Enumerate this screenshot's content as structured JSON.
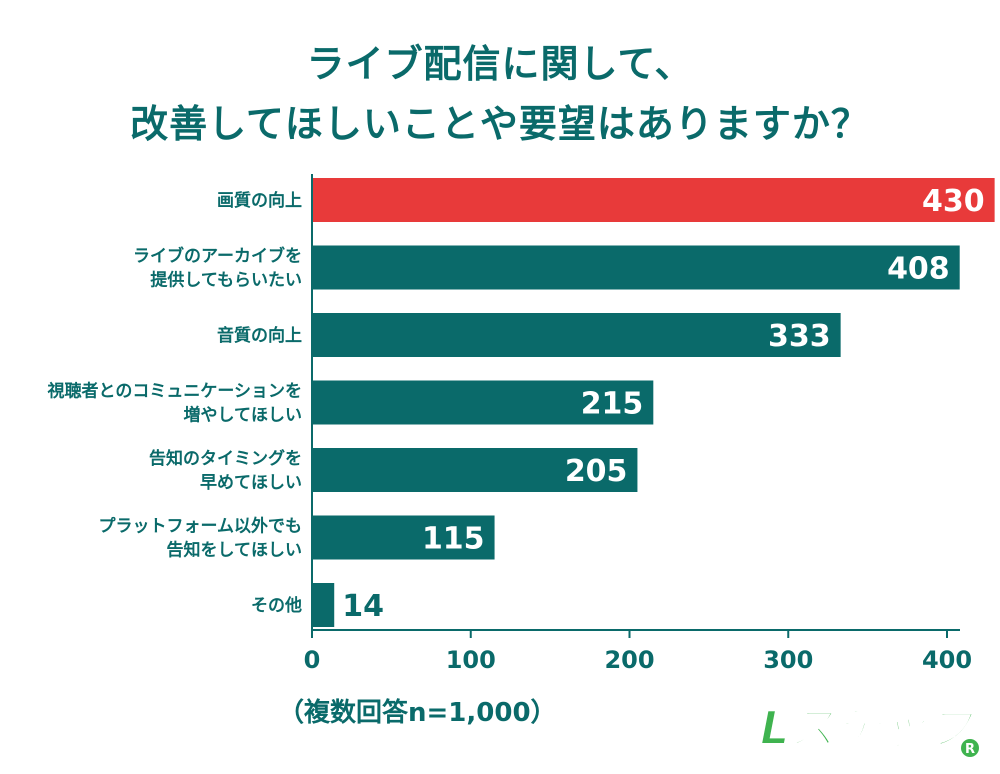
{
  "title": {
    "line1": "ライブ配信に関して、",
    "line2": "改善してほしいことや要望はありますか？"
  },
  "note": "（複数回答n=1,000）",
  "logo": {
    "text": "Lステップ",
    "mark": "®"
  },
  "colors": {
    "primary": "#0a6a6a",
    "highlight": "#e83a3a",
    "axis": "#0a6a6a"
  },
  "chart_data": {
    "type": "bar",
    "orientation": "horizontal",
    "categories": [
      [
        "画質の向上"
      ],
      [
        "ライブのアーカイブを",
        "提供してもらいたい"
      ],
      [
        "音質の向上"
      ],
      [
        "視聴者とのコミュニケーションを",
        "増やしてほしい"
      ],
      [
        "告知のタイミングを",
        "早めてほしい"
      ],
      [
        "プラットフォーム以外でも",
        "告知をしてほしい"
      ],
      [
        "その他"
      ]
    ],
    "values": [
      430,
      408,
      333,
      215,
      205,
      115,
      14
    ],
    "highlight_index": 0,
    "xlim": [
      0,
      410
    ],
    "xticks": [
      0,
      100,
      200,
      300,
      400
    ],
    "grid": false
  }
}
